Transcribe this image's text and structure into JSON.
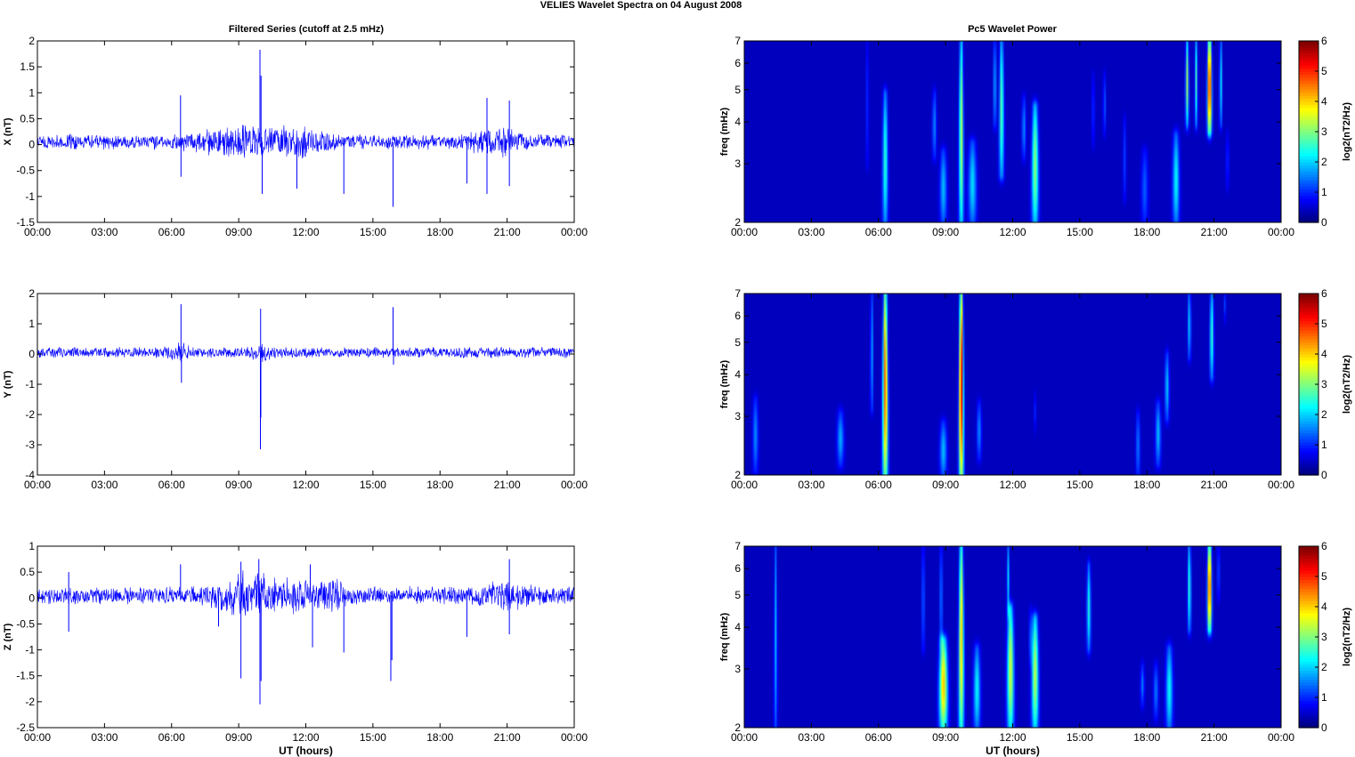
{
  "figure": {
    "title": "VELIES Wavelet Spectra on 04 August    2008",
    "left_title": "Filtered Series (cutoff at 2.5 mHz)",
    "right_title": "Pc5 Wavelet Power",
    "xlabel": "UT (hours)",
    "colors": {
      "trace": "#0000ff",
      "cmap_low": "#00008f",
      "cmap_high": "#800000"
    }
  },
  "chart_data": [
    {
      "type": "line",
      "panel": "X series",
      "title": "Filtered Series (cutoff at 2.5 mHz)",
      "ylabel": "X (nT)",
      "xlabel": "",
      "xlim": [
        0,
        24
      ],
      "ylim": [
        -1.5,
        2
      ],
      "x_ticks": [
        "00:00",
        "03:00",
        "06:00",
        "09:00",
        "12:00",
        "15:00",
        "18:00",
        "21:00",
        "00:00"
      ],
      "y_ticks": [
        "-1.5",
        "-1",
        "-0.5",
        "0",
        "0.5",
        "1",
        "1.5",
        "2"
      ],
      "baseline": 0.05,
      "noise_amplitude": 0.12,
      "activity": [
        {
          "x": 8.5,
          "w": 1.5,
          "a": 0.12
        },
        {
          "x": 10.5,
          "w": 1.8,
          "a": 0.12
        },
        {
          "x": 11.8,
          "w": 0.8,
          "a": 0.1
        },
        {
          "x": 20.0,
          "w": 0.8,
          "a": 0.1
        },
        {
          "x": 21.1,
          "w": 0.7,
          "a": 0.1
        }
      ],
      "spikes": [
        {
          "x": 6.4,
          "y": 0.95
        },
        {
          "x": 6.42,
          "y": -0.62
        },
        {
          "x": 9.95,
          "y": 1.83
        },
        {
          "x": 10.0,
          "y": 1.33
        },
        {
          "x": 10.05,
          "y": -0.95
        },
        {
          "x": 11.6,
          "y": -0.85
        },
        {
          "x": 13.7,
          "y": -0.95
        },
        {
          "x": 15.9,
          "y": -1.2
        },
        {
          "x": 19.2,
          "y": -0.75
        },
        {
          "x": 20.1,
          "y": -0.95
        },
        {
          "x": 21.1,
          "y": 0.85
        },
        {
          "x": 21.1,
          "y": -0.8
        },
        {
          "x": 20.1,
          "y": 0.9
        }
      ]
    },
    {
      "type": "line",
      "panel": "Y series",
      "ylabel": "Y (nT)",
      "xlabel": "",
      "xlim": [
        0,
        24
      ],
      "ylim": [
        -4,
        2
      ],
      "x_ticks": [
        "00:00",
        "03:00",
        "06:00",
        "09:00",
        "12:00",
        "15:00",
        "18:00",
        "21:00",
        "00:00"
      ],
      "y_ticks": [
        "-4",
        "-3",
        "-2",
        "-1",
        "0",
        "1",
        "2"
      ],
      "baseline": 0.05,
      "noise_amplitude": 0.15,
      "activity": [
        {
          "x": 6.4,
          "w": 0.4,
          "a": 0.15
        },
        {
          "x": 10.0,
          "w": 0.4,
          "a": 0.15
        }
      ],
      "spikes": [
        {
          "x": 6.42,
          "y": 1.65
        },
        {
          "x": 6.44,
          "y": -0.95
        },
        {
          "x": 9.98,
          "y": 1.5
        },
        {
          "x": 9.97,
          "y": -3.15
        },
        {
          "x": 9.99,
          "y": -2.1
        },
        {
          "x": 15.9,
          "y": 1.55
        },
        {
          "x": 15.92,
          "y": -0.35
        }
      ]
    },
    {
      "type": "line",
      "panel": "Z series",
      "ylabel": "Z (nT)",
      "xlabel": "UT (hours)",
      "xlim": [
        0,
        24
      ],
      "ylim": [
        -2.5,
        1
      ],
      "x_ticks": [
        "00:00",
        "03:00",
        "06:00",
        "09:00",
        "12:00",
        "15:00",
        "18:00",
        "21:00",
        "00:00"
      ],
      "y_ticks": [
        "-2.5",
        "-2",
        "-1.5",
        "-1",
        "-0.5",
        "0",
        "0.5",
        "1"
      ],
      "baseline": 0.05,
      "noise_amplitude": 0.14,
      "activity": [
        {
          "x": 8.9,
          "w": 1.2,
          "a": 0.2
        },
        {
          "x": 10.3,
          "w": 1.2,
          "a": 0.15
        },
        {
          "x": 12.0,
          "w": 1.0,
          "a": 0.12
        },
        {
          "x": 13.2,
          "w": 0.6,
          "a": 0.12
        },
        {
          "x": 21.0,
          "w": 1.0,
          "a": 0.12
        }
      ],
      "spikes": [
        {
          "x": 1.4,
          "y": -0.65
        },
        {
          "x": 1.4,
          "y": 0.5
        },
        {
          "x": 6.4,
          "y": 0.65
        },
        {
          "x": 8.1,
          "y": -0.55
        },
        {
          "x": 9.1,
          "y": 0.7
        },
        {
          "x": 9.1,
          "y": -1.55
        },
        {
          "x": 9.9,
          "y": 0.75
        },
        {
          "x": 9.95,
          "y": -2.05
        },
        {
          "x": 10.0,
          "y": -1.6
        },
        {
          "x": 12.2,
          "y": 0.65
        },
        {
          "x": 12.3,
          "y": -0.95
        },
        {
          "x": 13.7,
          "y": -1.05
        },
        {
          "x": 15.8,
          "y": -1.6
        },
        {
          "x": 15.85,
          "y": -1.2
        },
        {
          "x": 19.2,
          "y": -0.75
        },
        {
          "x": 21.1,
          "y": 0.75
        },
        {
          "x": 21.1,
          "y": -0.7
        }
      ]
    },
    {
      "type": "heatmap",
      "panel": "X wavelet power",
      "title": "Pc5 Wavelet Power",
      "ylabel": "freq (mHz)",
      "xlabel": "",
      "xlim": [
        0,
        24
      ],
      "ylim": [
        2,
        7
      ],
      "yscale": "log",
      "y_ticks": [
        "2",
        "3",
        "4",
        "5",
        "6",
        "7"
      ],
      "x_ticks": [
        "00:00",
        "03:00",
        "06:00",
        "09:00",
        "12:00",
        "15:00",
        "18:00",
        "21:00",
        "00:00"
      ],
      "colorbar": {
        "label": "log2(nT2/Hz)",
        "ticks": [
          "0",
          "1",
          "2",
          "3",
          "4",
          "5",
          "6"
        ],
        "range": [
          0,
          6
        ]
      },
      "blobs": [
        {
          "t": 6.3,
          "f0": 2.0,
          "f1": 4.8,
          "p": 2.3,
          "w": 0.08
        },
        {
          "t": 5.5,
          "f0": 3.0,
          "f1": 7.0,
          "p": 0.7,
          "w": 0.05
        },
        {
          "t": 8.9,
          "f0": 2.0,
          "f1": 3.2,
          "p": 1.6,
          "w": 0.1
        },
        {
          "t": 8.5,
          "f0": 3.2,
          "f1": 4.8,
          "p": 1.3,
          "w": 0.07
        },
        {
          "t": 9.7,
          "f0": 2.0,
          "f1": 7.0,
          "p": 3.2,
          "w": 0.07
        },
        {
          "t": 10.2,
          "f0": 2.0,
          "f1": 3.4,
          "p": 1.8,
          "w": 0.12
        },
        {
          "t": 11.5,
          "f0": 2.8,
          "f1": 7.0,
          "p": 2.6,
          "w": 0.08
        },
        {
          "t": 11.2,
          "f0": 4.0,
          "f1": 7.0,
          "p": 1.8,
          "w": 0.05
        },
        {
          "t": 13.0,
          "f0": 2.0,
          "f1": 4.4,
          "p": 2.9,
          "w": 0.1
        },
        {
          "t": 12.5,
          "f0": 3.2,
          "f1": 4.6,
          "p": 1.3,
          "w": 0.07
        },
        {
          "t": 15.6,
          "f0": 3.5,
          "f1": 5.4,
          "p": 0.8,
          "w": 0.05
        },
        {
          "t": 16.1,
          "f0": 3.8,
          "f1": 5.4,
          "p": 1.0,
          "w": 0.05
        },
        {
          "t": 17.0,
          "f0": 2.4,
          "f1": 4.0,
          "p": 0.8,
          "w": 0.05
        },
        {
          "t": 17.9,
          "f0": 2.0,
          "f1": 3.2,
          "p": 1.0,
          "w": 0.1
        },
        {
          "t": 19.3,
          "f0": 2.0,
          "f1": 3.6,
          "p": 2.0,
          "w": 0.1
        },
        {
          "t": 19.8,
          "f0": 4.0,
          "f1": 7.0,
          "p": 3.0,
          "w": 0.06
        },
        {
          "t": 20.2,
          "f0": 4.0,
          "f1": 7.0,
          "p": 2.4,
          "w": 0.05
        },
        {
          "t": 20.8,
          "f0": 3.8,
          "f1": 7.0,
          "p": 5.3,
          "w": 0.08
        },
        {
          "t": 21.3,
          "f0": 4.0,
          "f1": 7.0,
          "p": 2.0,
          "w": 0.05
        },
        {
          "t": 21.6,
          "f0": 2.6,
          "f1": 3.6,
          "p": 0.7,
          "w": 0.05
        }
      ]
    },
    {
      "type": "heatmap",
      "panel": "Y wavelet power",
      "ylabel": "freq (mHz)",
      "xlabel": "",
      "xlim": [
        0,
        24
      ],
      "ylim": [
        2,
        7
      ],
      "yscale": "log",
      "y_ticks": [
        "2",
        "3",
        "4",
        "5",
        "6",
        "7"
      ],
      "x_ticks": [
        "00:00",
        "03:00",
        "06:00",
        "09:00",
        "12:00",
        "15:00",
        "18:00",
        "21:00",
        "00:00"
      ],
      "colorbar": {
        "label": "log2(nT2/Hz)",
        "ticks": [
          "0",
          "1",
          "2",
          "3",
          "4",
          "5",
          "6"
        ],
        "range": [
          0,
          6
        ]
      },
      "blobs": [
        {
          "t": 0.5,
          "f0": 2.1,
          "f1": 3.3,
          "p": 1.3,
          "w": 0.08
        },
        {
          "t": 4.3,
          "f0": 2.2,
          "f1": 3.0,
          "p": 1.5,
          "w": 0.1
        },
        {
          "t": 5.7,
          "f0": 3.2,
          "f1": 7.0,
          "p": 1.5,
          "w": 0.05
        },
        {
          "t": 6.3,
          "f0": 2.0,
          "f1": 7.0,
          "p": 4.8,
          "w": 0.08
        },
        {
          "t": 8.9,
          "f0": 2.0,
          "f1": 2.8,
          "p": 1.6,
          "w": 0.1
        },
        {
          "t": 9.7,
          "f0": 2.0,
          "f1": 7.0,
          "p": 5.6,
          "w": 0.07
        },
        {
          "t": 10.5,
          "f0": 2.3,
          "f1": 3.2,
          "p": 1.3,
          "w": 0.07
        },
        {
          "t": 13.0,
          "f0": 2.8,
          "f1": 3.4,
          "p": 0.6,
          "w": 0.04
        },
        {
          "t": 17.6,
          "f0": 2.0,
          "f1": 3.0,
          "p": 1.2,
          "w": 0.06
        },
        {
          "t": 18.5,
          "f0": 2.2,
          "f1": 3.2,
          "p": 1.6,
          "w": 0.08
        },
        {
          "t": 18.9,
          "f0": 3.0,
          "f1": 4.5,
          "p": 1.7,
          "w": 0.07
        },
        {
          "t": 19.9,
          "f0": 4.6,
          "f1": 7.0,
          "p": 1.8,
          "w": 0.06
        },
        {
          "t": 20.9,
          "f0": 4.0,
          "f1": 7.0,
          "p": 2.4,
          "w": 0.07
        },
        {
          "t": 21.5,
          "f0": 6.0,
          "f1": 7.0,
          "p": 1.0,
          "w": 0.04
        }
      ]
    },
    {
      "type": "heatmap",
      "panel": "Z wavelet power",
      "ylabel": "freq (mHz)",
      "xlabel": "UT (hours)",
      "xlim": [
        0,
        24
      ],
      "ylim": [
        2,
        7
      ],
      "yscale": "log",
      "y_ticks": [
        "2",
        "3",
        "4",
        "5",
        "6",
        "7"
      ],
      "x_ticks": [
        "00:00",
        "03:00",
        "06:00",
        "09:00",
        "12:00",
        "15:00",
        "18:00",
        "21:00",
        "00:00"
      ],
      "colorbar": {
        "label": "log2(nT2/Hz)",
        "ticks": [
          "0",
          "1",
          "2",
          "3",
          "4",
          "5",
          "6"
        ],
        "range": [
          0,
          6
        ]
      },
      "blobs": [
        {
          "t": 1.4,
          "f0": 2.0,
          "f1": 7.0,
          "p": 1.6,
          "w": 0.05
        },
        {
          "t": 8.0,
          "f0": 3.5,
          "f1": 7.0,
          "p": 1.2,
          "w": 0.05
        },
        {
          "t": 8.9,
          "f0": 2.0,
          "f1": 3.6,
          "p": 4.0,
          "w": 0.12
        },
        {
          "t": 8.8,
          "f0": 3.6,
          "f1": 7.0,
          "p": 1.4,
          "w": 0.05
        },
        {
          "t": 9.7,
          "f0": 2.0,
          "f1": 7.0,
          "p": 4.0,
          "w": 0.08
        },
        {
          "t": 10.4,
          "f0": 2.0,
          "f1": 3.4,
          "p": 2.0,
          "w": 0.1
        },
        {
          "t": 11.9,
          "f0": 2.0,
          "f1": 4.5,
          "p": 3.4,
          "w": 0.1
        },
        {
          "t": 11.8,
          "f0": 4.5,
          "f1": 7.0,
          "p": 1.8,
          "w": 0.05
        },
        {
          "t": 13.0,
          "f0": 2.0,
          "f1": 4.2,
          "p": 3.2,
          "w": 0.1
        },
        {
          "t": 12.8,
          "f0": 3.2,
          "f1": 4.4,
          "p": 1.0,
          "w": 0.05
        },
        {
          "t": 15.4,
          "f0": 3.5,
          "f1": 6.0,
          "p": 2.2,
          "w": 0.07
        },
        {
          "t": 17.8,
          "f0": 2.4,
          "f1": 3.0,
          "p": 1.2,
          "w": 0.06
        },
        {
          "t": 19.0,
          "f0": 2.0,
          "f1": 3.4,
          "p": 2.0,
          "w": 0.1
        },
        {
          "t": 18.4,
          "f0": 2.2,
          "f1": 3.0,
          "p": 1.2,
          "w": 0.07
        },
        {
          "t": 19.9,
          "f0": 4.0,
          "f1": 7.0,
          "p": 2.4,
          "w": 0.06
        },
        {
          "t": 20.8,
          "f0": 4.0,
          "f1": 7.0,
          "p": 5.0,
          "w": 0.08
        },
        {
          "t": 21.2,
          "f0": 5.0,
          "f1": 7.0,
          "p": 1.5,
          "w": 0.04
        }
      ]
    }
  ]
}
